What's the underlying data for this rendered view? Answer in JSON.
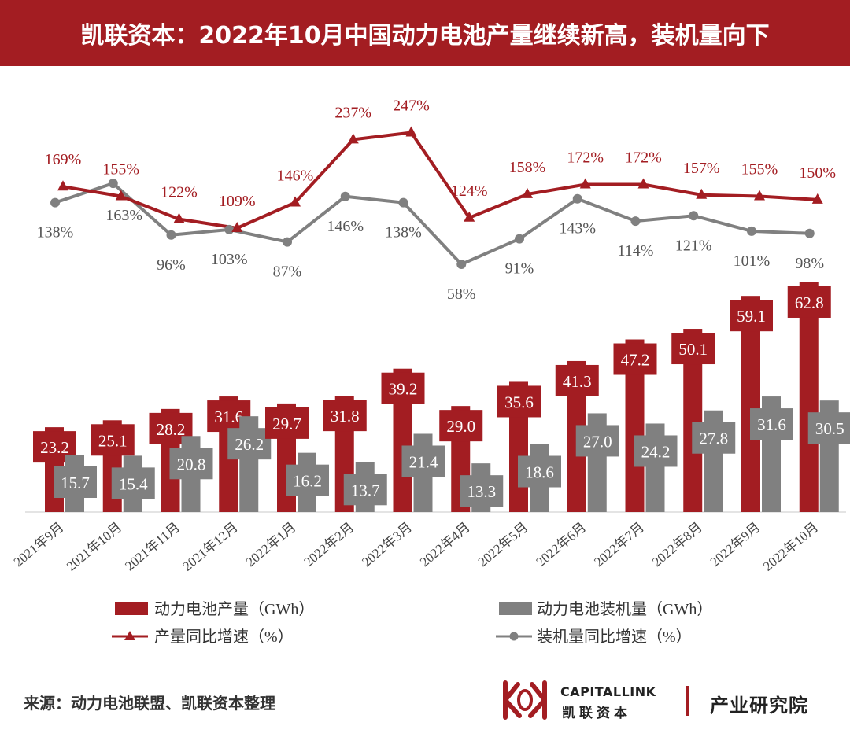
{
  "header": {
    "title": "凯联资本：2022年10月中国动力电池产量继续新高，装机量向下"
  },
  "colors": {
    "production": "#a31d22",
    "installed": "#808080",
    "header_bg": "#a31d22"
  },
  "chart_data": {
    "type": "bar",
    "categories": [
      "2021年9月",
      "2021年10月",
      "2021年11月",
      "2021年12月",
      "2022年1月",
      "2022年2月",
      "2022年3月",
      "2022年4月",
      "2022年5月",
      "2022年6月",
      "2022年7月",
      "2022年8月",
      "2022年9月",
      "2022年10月"
    ],
    "series": [
      {
        "name": "动力电池产量（GWh）",
        "kind": "bar",
        "values": [
          23.2,
          25.1,
          28.2,
          31.6,
          29.7,
          31.8,
          39.2,
          29.0,
          35.6,
          41.3,
          47.2,
          50.1,
          59.1,
          62.8
        ],
        "labels": [
          "23.2",
          "25.1",
          "28.2",
          "31.6",
          "29.7",
          "31.8",
          "39.2",
          "29.0",
          "35.6",
          "41.3",
          "47.2",
          "50.1",
          "59.1",
          "62.8"
        ]
      },
      {
        "name": "动力电池装机量（GWh）",
        "kind": "bar",
        "values": [
          15.7,
          15.4,
          20.8,
          26.2,
          16.2,
          13.7,
          21.4,
          13.3,
          18.6,
          27.0,
          24.2,
          27.8,
          31.6,
          30.5
        ],
        "labels": [
          "15.7",
          "15.4",
          "20.8",
          "26.2",
          "16.2",
          "13.7",
          "21.4",
          "13.3",
          "18.6",
          "27.0",
          "24.2",
          "27.8",
          "31.6",
          "30.5"
        ]
      },
      {
        "name": "产量同比增速（%）",
        "kind": "line",
        "marker": "triangle",
        "values": [
          169,
          155,
          122,
          109,
          146,
          237,
          247,
          124,
          158,
          172,
          172,
          157,
          155,
          150
        ],
        "labels": [
          "169%",
          "155%",
          "122%",
          "109%",
          "146%",
          "237%",
          "247%",
          "124%",
          "158%",
          "172%",
          "172%",
          "157%",
          "155%",
          "150%"
        ]
      },
      {
        "name": "装机量同比增速（%）",
        "kind": "line",
        "marker": "circle",
        "values": [
          138,
          163,
          96,
          103,
          87,
          146,
          138,
          58,
          91,
          143,
          114,
          121,
          101,
          98
        ],
        "labels": [
          "138%",
          "163%",
          "96%",
          "103%",
          "87%",
          "146%",
          "138%",
          "58%",
          "91%",
          "143%",
          "114%",
          "121%",
          "101%",
          "98%"
        ]
      }
    ],
    "legend_position": "bottom",
    "grid": false
  },
  "footer": {
    "source": "来源：动力电池联盟、凯联资本整理",
    "brand_en": "CAPITALLINK",
    "brand_cn": "凯联资本",
    "institute": "产业研究院"
  }
}
